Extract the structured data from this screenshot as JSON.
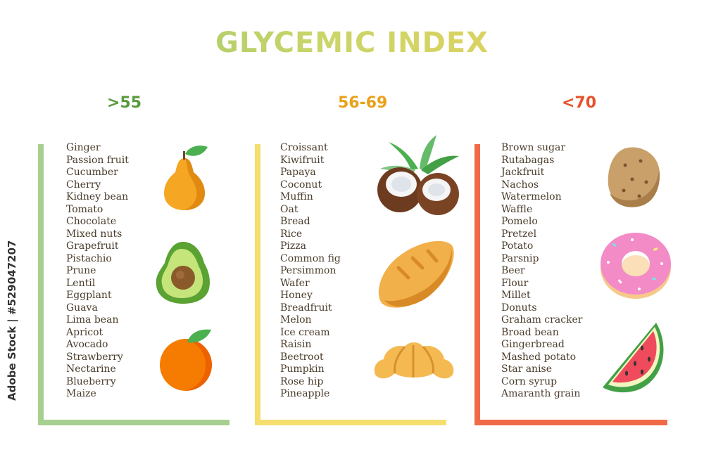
{
  "title": "GLYCEMIC INDEX",
  "watermark": "Adobe Stock | #529047207",
  "columns": [
    {
      "heading": ">55",
      "color": "#5a9a3c",
      "bar_color": "#a7cf8f",
      "items": [
        "Ginger",
        "Passion fruit",
        "Cucumber",
        "Cherry",
        "Kidney bean",
        "Tomato",
        "Chocolate",
        "Mixed nuts",
        "Grapefruit",
        "Pistachio",
        "Prune",
        "Lentil",
        "Eggplant",
        "Guava",
        "Lima bean",
        "Apricot",
        "Avocado",
        "Strawberry",
        "Nectarine",
        "Blueberry",
        "Maize"
      ],
      "icons": [
        "pear-icon",
        "avocado-icon",
        "orange-icon"
      ]
    },
    {
      "heading": "56-69",
      "color": "#e8a21a",
      "bar_color": "#f5de6e",
      "items": [
        "Croissant",
        "Kiwifruit",
        "Papaya",
        "Coconut",
        "Muffin",
        "Oat",
        "Bread",
        "Rice",
        "Pizza",
        "Common fig",
        "Persimmon",
        "Wafer",
        "Honey",
        "Breadfruit",
        "Melon",
        "Ice cream",
        "Raisin",
        "Beetroot",
        "Pumpkin",
        "Rose hip",
        "Pineapple"
      ],
      "icons": [
        "coconut-icon",
        "bread-icon",
        "croissant-icon"
      ]
    },
    {
      "heading": "<70",
      "color": "#e8502a",
      "bar_color": "#f06a48",
      "items": [
        "Brown sugar",
        "Rutabagas",
        "Jackfruit",
        "Nachos",
        "Watermelon",
        "Waffle",
        "Pomelo",
        "Pretzel",
        "Potato",
        "Parsnip",
        "Beer",
        "Flour",
        "Millet",
        "Donuts",
        "Graham cracker",
        "Broad bean",
        "Gingerbread",
        "Mashed potato",
        "Star anise",
        "Corn syrup",
        "Amaranth grain"
      ],
      "icons": [
        "potato-icon",
        "donut-icon",
        "watermelon-icon"
      ]
    }
  ]
}
